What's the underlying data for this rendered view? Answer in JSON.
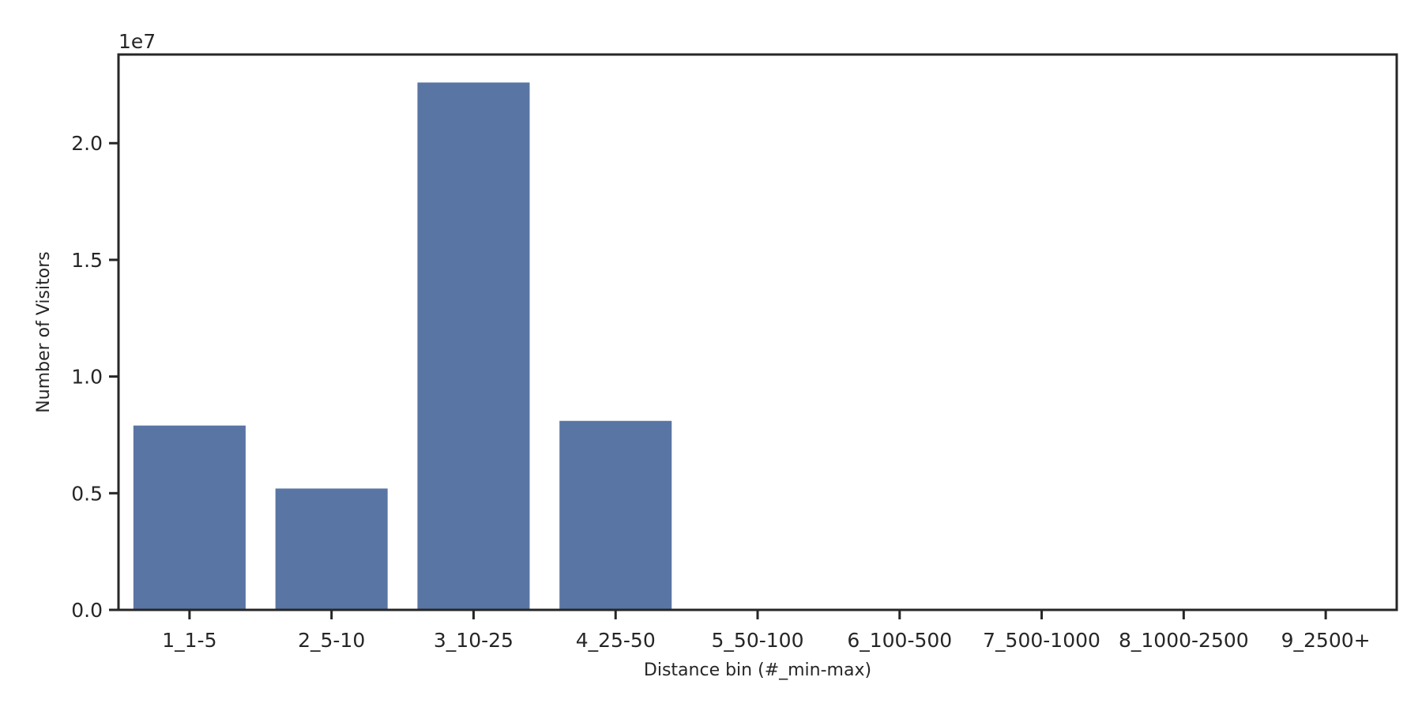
{
  "chart_data": {
    "type": "bar",
    "categories": [
      "1_1-5",
      "2_5-10",
      "3_10-25",
      "4_25-50",
      "5_50-100",
      "6_100-500",
      "7_500-1000",
      "8_1000-2500",
      "9_2500+"
    ],
    "values": [
      7900000,
      5200000,
      22600000,
      8100000,
      0,
      0,
      0,
      0,
      0
    ],
    "xlabel": "Distance bin (#_min-max)",
    "ylabel": "Number of Visitors",
    "ylim": [
      0,
      23800000
    ],
    "yticks": [
      0,
      5000000,
      10000000,
      15000000,
      20000000
    ],
    "ytick_labels": [
      "0.0",
      "0.5",
      "1.0",
      "1.5",
      "2.0"
    ],
    "y_offset_label": "1e7",
    "bar_color": "#5975a4",
    "axis_color": "#262626",
    "grid": false
  }
}
